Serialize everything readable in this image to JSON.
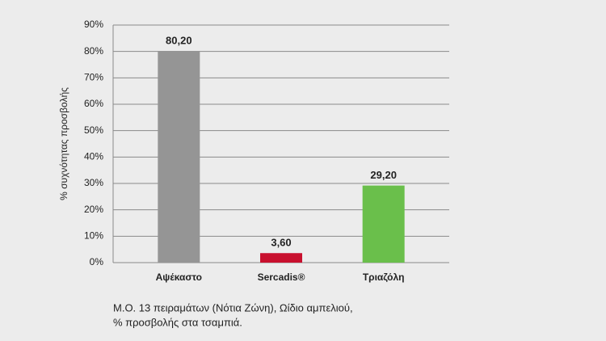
{
  "chart_data": {
    "type": "bar",
    "y_label": "% συχνότητας προσβολής",
    "categories": [
      "Αψέκαστο",
      "Sercadis®",
      "Τριαζόλη"
    ],
    "values": [
      80.2,
      3.6,
      29.2
    ],
    "value_labels": [
      "80,20",
      "3,60",
      "29,20"
    ],
    "colors": [
      "#959595",
      "#c8102e",
      "#6abf4b"
    ],
    "ylim": [
      0,
      90
    ],
    "yticks": [
      {
        "value": 0,
        "label": "0%"
      },
      {
        "value": 10,
        "label": "10%"
      },
      {
        "value": 20,
        "label": "20%"
      },
      {
        "value": 30,
        "label": "30%"
      },
      {
        "value": 40,
        "label": "40%"
      },
      {
        "value": 50,
        "label": "50%"
      },
      {
        "value": 60,
        "label": "60%"
      },
      {
        "value": 70,
        "label": "70%"
      },
      {
        "value": 80,
        "label": "80%"
      },
      {
        "value": 90,
        "label": "90%"
      }
    ],
    "grid": true,
    "caption": [
      "Μ.Ο. 13 πειραμάτων (Νότια Ζώνη), Ωίδιο αμπελιού,",
      "% προσβολής στα τσαμπιά."
    ]
  }
}
